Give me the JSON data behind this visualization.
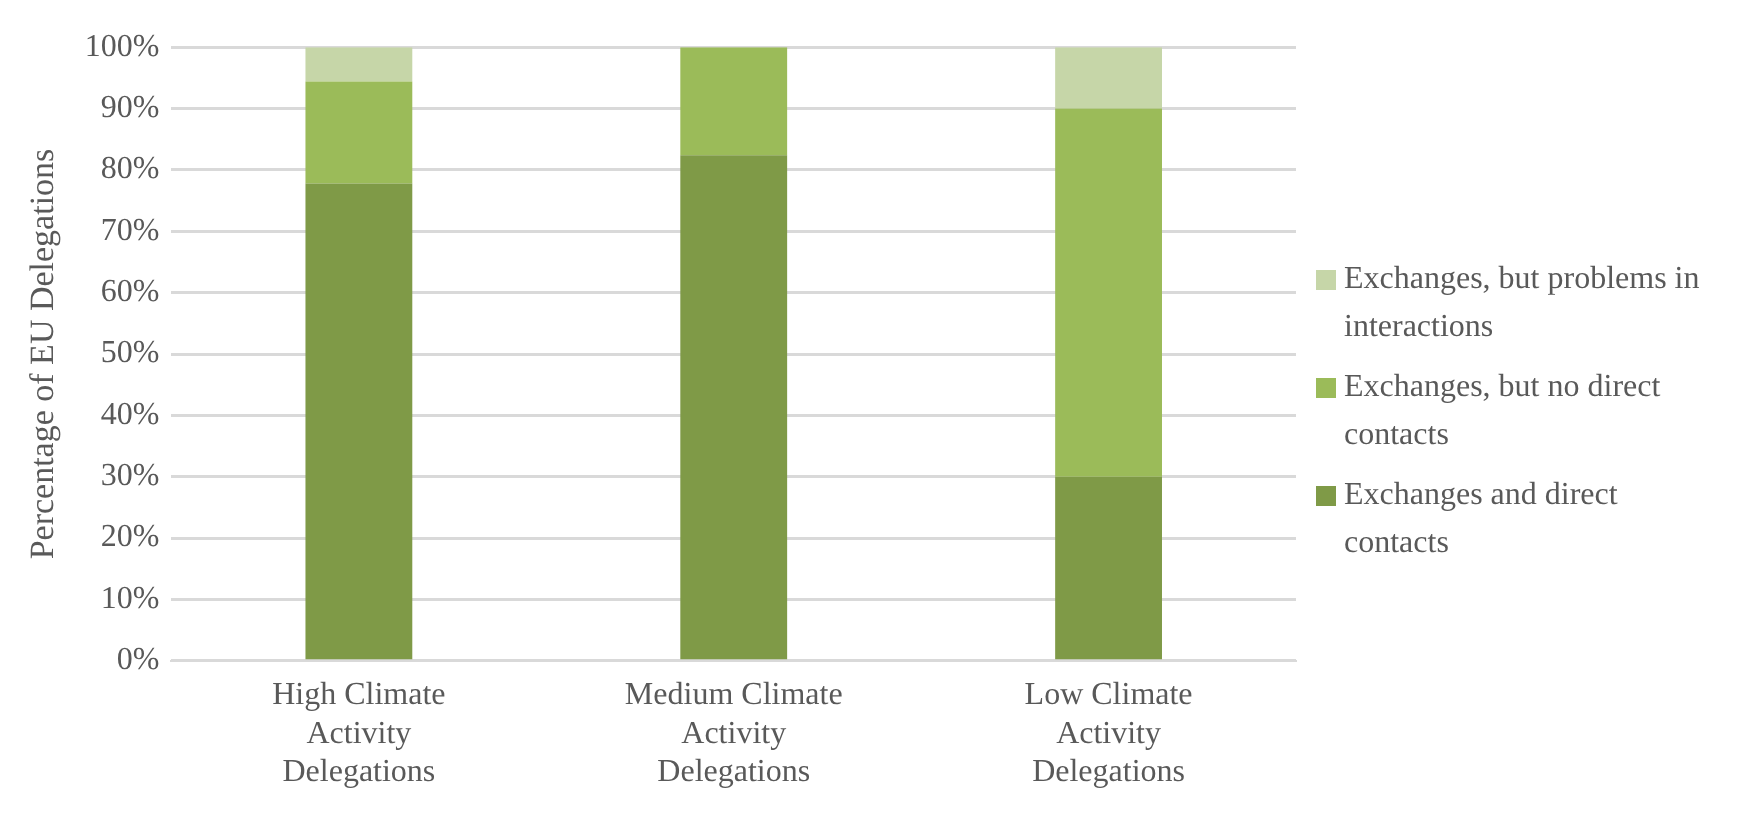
{
  "chart_data": {
    "type": "bar",
    "stacked": true,
    "ylabel": "Percentage of EU Delegations",
    "categories": [
      "High Climate Activity Delegations",
      "Medium Climate Activity Delegations",
      "Low Climate Activity Delegations"
    ],
    "series": [
      {
        "name": "Exchanges and direct contacts",
        "color": "#7f9a47",
        "values": [
          77.8,
          82.4,
          30
        ]
      },
      {
        "name": "Exchanges, but no direct contacts",
        "color": "#9bbb59",
        "values": [
          16.6,
          17.6,
          60
        ]
      },
      {
        "name": "Exchanges, but problems in interactions",
        "color": "#c6d6a8",
        "values": [
          5.6,
          0,
          10
        ]
      }
    ],
    "ylim": [
      0,
      100
    ],
    "yticks": [
      {
        "value": 0,
        "label": "0%"
      },
      {
        "value": 10,
        "label": "10%"
      },
      {
        "value": 20,
        "label": "20%"
      },
      {
        "value": 30,
        "label": "30%"
      },
      {
        "value": 40,
        "label": "40%"
      },
      {
        "value": 50,
        "label": "50%"
      },
      {
        "value": 60,
        "label": "60%"
      },
      {
        "value": 70,
        "label": "70%"
      },
      {
        "value": 80,
        "label": "80%"
      },
      {
        "value": 90,
        "label": "90%"
      },
      {
        "value": 100,
        "label": "100%"
      }
    ],
    "grid": "y",
    "legend": "right"
  }
}
